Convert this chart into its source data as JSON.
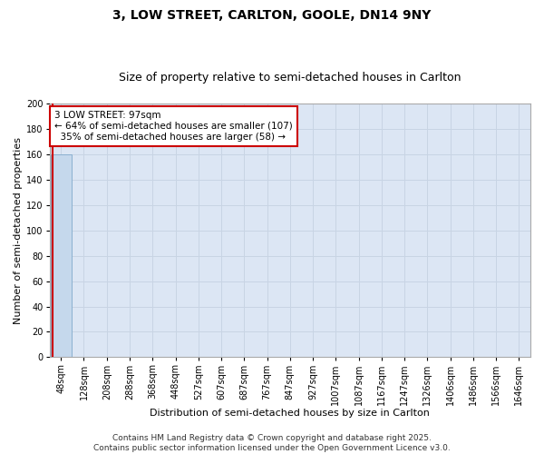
{
  "title": "3, LOW STREET, CARLTON, GOOLE, DN14 9NY",
  "subtitle": "Size of property relative to semi-detached houses in Carlton",
  "xlabel": "Distribution of semi-detached houses by size in Carlton",
  "ylabel": "Number of semi-detached properties",
  "bar_labels": [
    "48sqm",
    "128sqm",
    "208sqm",
    "288sqm",
    "368sqm",
    "448sqm",
    "527sqm",
    "607sqm",
    "687sqm",
    "767sqm",
    "847sqm",
    "927sqm",
    "1007sqm",
    "1087sqm",
    "1167sqm",
    "1247sqm",
    "1326sqm",
    "1406sqm",
    "1486sqm",
    "1566sqm",
    "1646sqm"
  ],
  "bar_values": [
    160,
    0,
    0,
    0,
    0,
    0,
    0,
    0,
    0,
    0,
    0,
    0,
    0,
    0,
    0,
    0,
    0,
    0,
    0,
    0,
    0
  ],
  "bar_color": "#c5d8ec",
  "bar_edge_color": "#8ab0d0",
  "vline_color": "#cc0000",
  "vline_x_data": -0.38,
  "ylim": [
    0,
    200
  ],
  "yticks": [
    0,
    20,
    40,
    60,
    80,
    100,
    120,
    140,
    160,
    180,
    200
  ],
  "grid_color": "#c8d4e4",
  "background_color": "#dce6f4",
  "annotation_text": "3 LOW STREET: 97sqm\n← 64% of semi-detached houses are smaller (107)\n  35% of semi-detached houses are larger (58) →",
  "annotation_box_color": "#cc0000",
  "footer_text": "Contains HM Land Registry data © Crown copyright and database right 2025.\nContains public sector information licensed under the Open Government Licence v3.0.",
  "title_fontsize": 10,
  "subtitle_fontsize": 9,
  "xlabel_fontsize": 8,
  "ylabel_fontsize": 8,
  "tick_fontsize": 7,
  "annotation_fontsize": 7.5,
  "footer_fontsize": 6.5
}
